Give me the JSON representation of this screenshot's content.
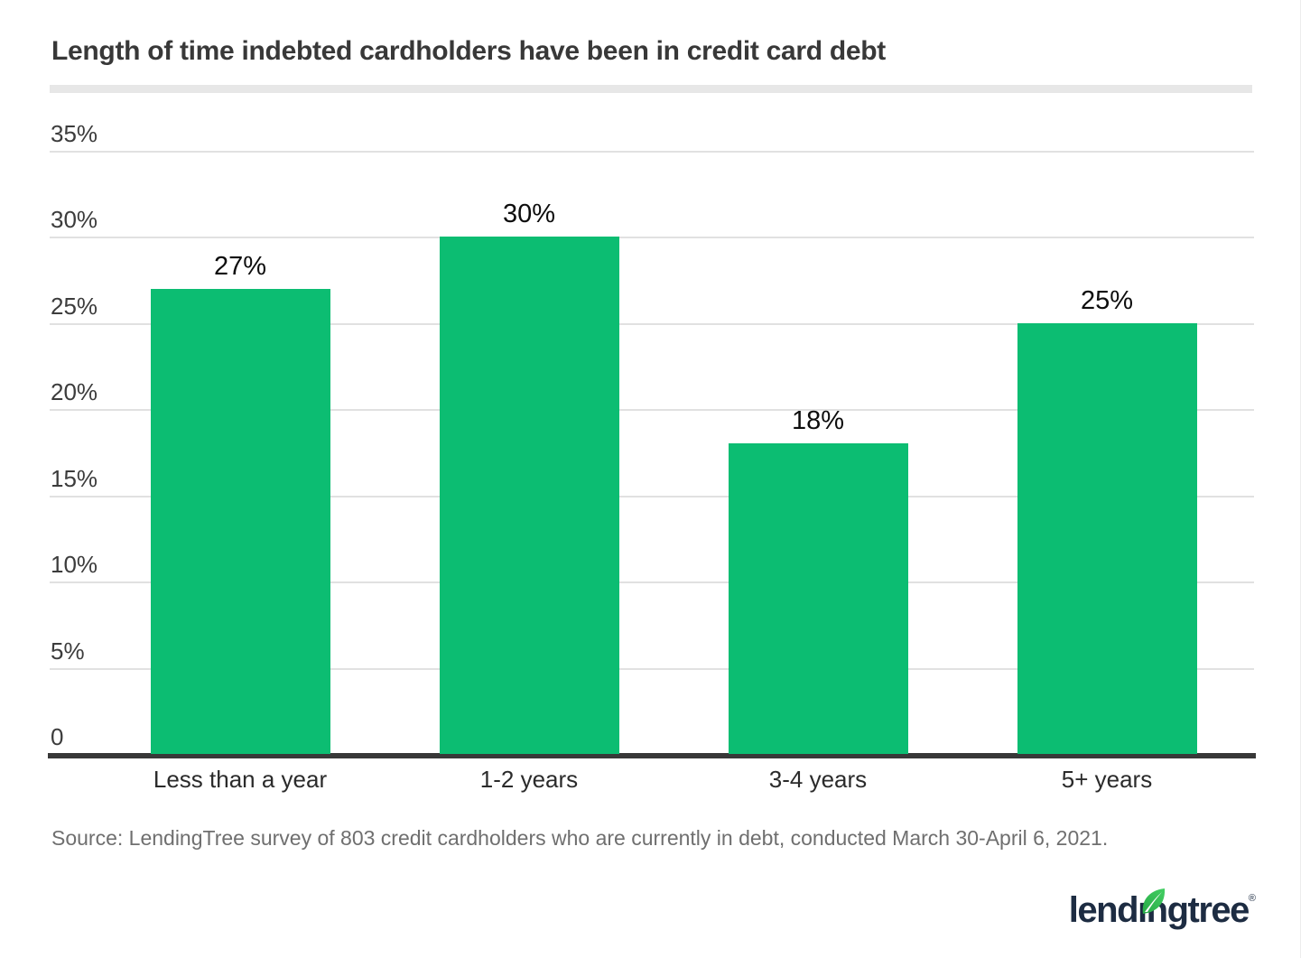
{
  "header": {
    "title": "Length of time indebted cardholders have been in credit card debt"
  },
  "source": {
    "text": "Source: LendingTree survey of 803 credit cardholders who are currently in debt, conducted March 30-April 6, 2021."
  },
  "logo": {
    "brand": "lendingtree",
    "text_left": "lend",
    "text_i_dotless": "ı",
    "text_right": "ngtree",
    "registered": "®"
  },
  "colors": {
    "bar": "#0cbd72",
    "gridline": "#e1e1e1",
    "axis": "#383838",
    "divider": "#e7e7e7",
    "title_text": "#383838",
    "source_text": "#6f6f6f",
    "logo_navy": "#1d2c42",
    "leaf_green_dark": "#27aa46",
    "leaf_green_light": "#43cf63"
  },
  "chart_data": {
    "type": "bar",
    "title": "Length of time indebted cardholders have been in credit card debt",
    "categories": [
      "Less than a year",
      "1-2 years",
      "3-4 years",
      "5+ years"
    ],
    "values": [
      27,
      30,
      18,
      25
    ],
    "value_labels": [
      "27%",
      "30%",
      "18%",
      "25%"
    ],
    "xlabel": "",
    "ylabel": "",
    "ylim": [
      0,
      35
    ],
    "ytick_interval": 5,
    "ytick_labels": [
      "35%",
      "30%",
      "25%",
      "20%",
      "15%",
      "10%",
      "5%",
      "0"
    ],
    "grid": true,
    "legend": false,
    "bar_color": "#0cbd72"
  }
}
